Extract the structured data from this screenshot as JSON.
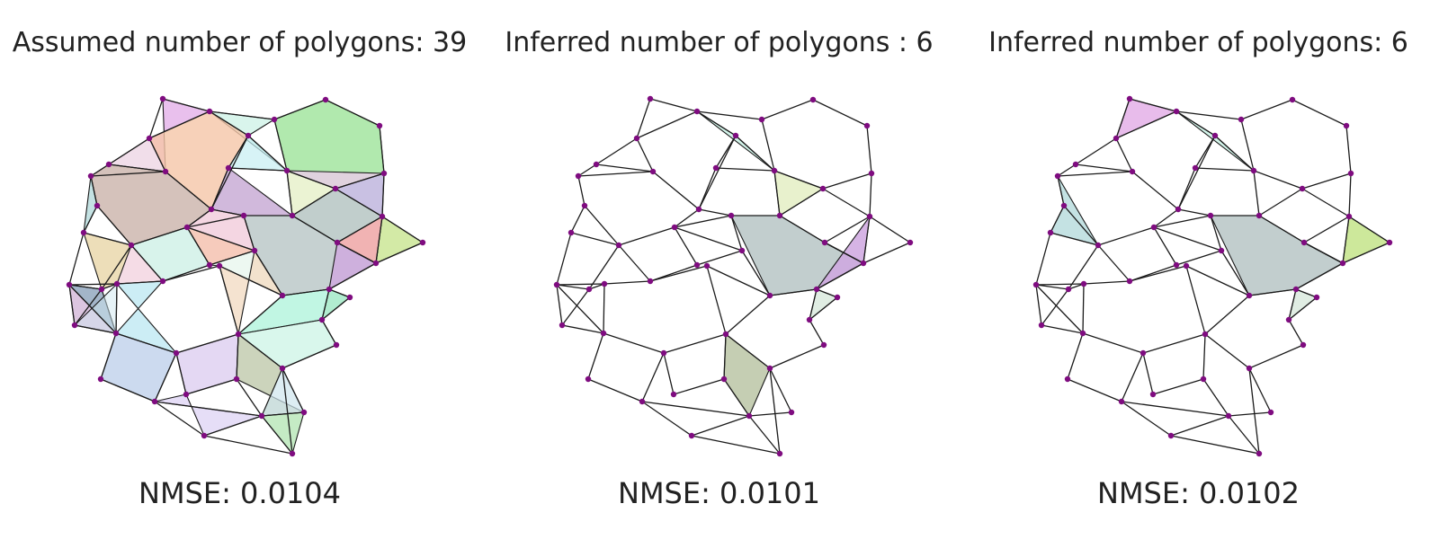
{
  "panels": [
    {
      "title": "Assumed number of polygons: 39",
      "caption": "NMSE: 0.0104",
      "highlight": "all"
    },
    {
      "title": "Inferred number of polygons : 6",
      "caption": "NMSE: 0.0101",
      "highlight": "subset_a"
    },
    {
      "title": "Inferred number of polygons: 6",
      "caption": "NMSE: 0.0102",
      "highlight": "subset_b"
    }
  ],
  "colors": {
    "node": "#7f0c80",
    "edge": "#1a1a1a"
  }
}
